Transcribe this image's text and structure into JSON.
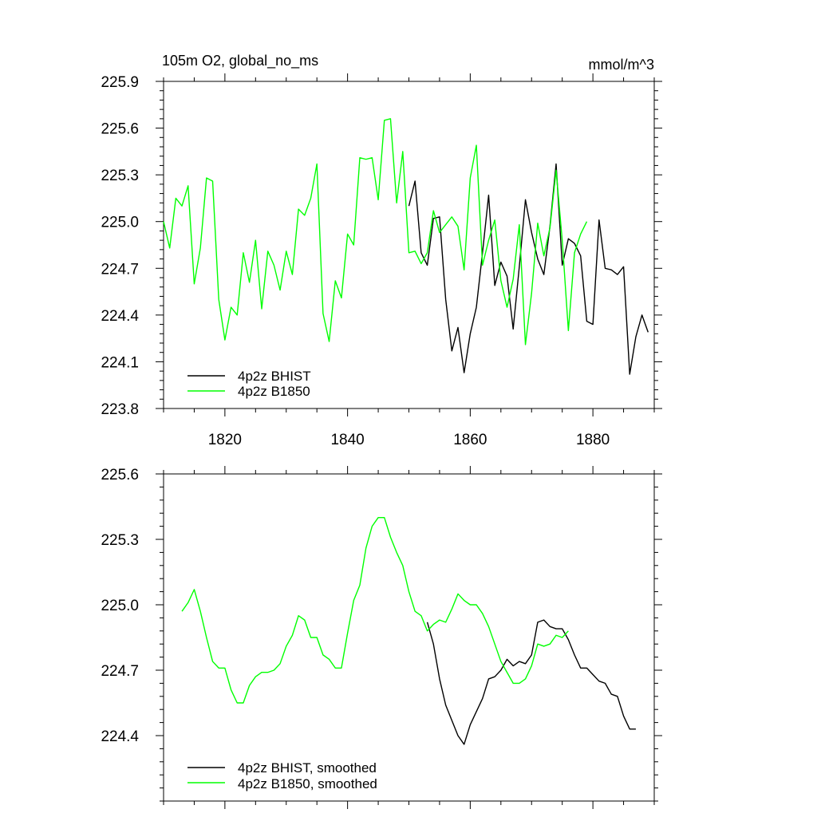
{
  "chart_data": [
    {
      "type": "line",
      "title_left": "105m O2, global_no_ms",
      "title_right": "mmol/m^3",
      "xlim": [
        1810,
        1890
      ],
      "ylim": [
        223.8,
        225.9
      ],
      "yticks": [
        "225.9",
        "225.6",
        "225.3",
        "225.0",
        "224.7",
        "224.4",
        "224.1",
        "223.8"
      ],
      "ytick_values": [
        225.9,
        225.6,
        225.3,
        225.0,
        224.7,
        224.4,
        224.1,
        223.8
      ],
      "xticks": [
        "1820",
        "1840",
        "1860",
        "1880"
      ],
      "xtick_values": [
        1820,
        1840,
        1860,
        1880
      ],
      "legend": [
        "4p2z BHIST",
        "4p2z B1850"
      ],
      "series": [
        {
          "name": "4p2z BHIST",
          "color": "#000000",
          "x": [
            1850,
            1851,
            1852,
            1853,
            1854,
            1855,
            1856,
            1857,
            1858,
            1859,
            1860,
            1861,
            1862,
            1863,
            1864,
            1865,
            1866,
            1867,
            1868,
            1869,
            1870,
            1871,
            1872,
            1873,
            1874,
            1875,
            1876,
            1877,
            1878,
            1879,
            1880,
            1881,
            1882,
            1883,
            1884,
            1885,
            1886,
            1887,
            1888,
            1889
          ],
          "values": [
            225.1,
            225.26,
            224.8,
            224.72,
            225.02,
            225.03,
            224.5,
            224.17,
            224.32,
            224.03,
            224.28,
            224.45,
            224.8,
            225.17,
            224.59,
            224.74,
            224.65,
            224.31,
            224.71,
            225.14,
            224.93,
            224.76,
            224.66,
            224.97,
            225.37,
            224.72,
            224.89,
            224.86,
            224.78,
            224.36,
            224.34,
            225.01,
            224.7,
            224.69,
            224.66,
            224.71,
            224.02,
            224.26,
            224.4,
            224.29
          ]
        },
        {
          "name": "4p2z B1850",
          "color": "#00ff00",
          "x": [
            1810,
            1811,
            1812,
            1813,
            1814,
            1815,
            1816,
            1817,
            1818,
            1819,
            1820,
            1821,
            1822,
            1823,
            1824,
            1825,
            1826,
            1827,
            1828,
            1829,
            1830,
            1831,
            1832,
            1833,
            1834,
            1835,
            1836,
            1837,
            1838,
            1839,
            1840,
            1841,
            1842,
            1843,
            1844,
            1845,
            1846,
            1847,
            1848,
            1849,
            1850,
            1851,
            1852,
            1853,
            1854,
            1855,
            1856,
            1857,
            1858,
            1859,
            1860,
            1861,
            1862,
            1863,
            1864,
            1865,
            1866,
            1867,
            1868,
            1869,
            1870,
            1871,
            1872,
            1873,
            1874,
            1875,
            1876,
            1877,
            1878,
            1879
          ],
          "values": [
            225.0,
            224.83,
            225.15,
            225.1,
            225.23,
            224.6,
            224.83,
            225.28,
            225.26,
            224.5,
            224.24,
            224.45,
            224.4,
            224.8,
            224.61,
            224.88,
            224.44,
            224.81,
            224.72,
            224.56,
            224.81,
            224.66,
            225.08,
            225.04,
            225.15,
            225.37,
            224.41,
            224.23,
            224.62,
            224.51,
            224.92,
            224.85,
            225.41,
            225.4,
            225.41,
            225.14,
            225.65,
            225.66,
            225.12,
            225.45,
            224.8,
            224.81,
            224.73,
            224.8,
            225.07,
            224.93,
            224.98,
            225.03,
            224.97,
            224.69,
            225.28,
            225.49,
            224.72,
            224.88,
            225.01,
            224.62,
            224.45,
            224.63,
            224.98,
            224.21,
            224.54,
            224.99,
            224.78,
            224.96,
            225.33,
            224.88,
            224.3,
            224.8,
            224.92,
            225.0
          ]
        }
      ]
    },
    {
      "type": "line",
      "xlim": [
        1810,
        1890
      ],
      "ylim": [
        224.1,
        225.6
      ],
      "yticks": [
        "225.6",
        "225.3",
        "225.0",
        "224.7",
        "224.4"
      ],
      "ytick_values": [
        225.6,
        225.3,
        225.0,
        224.7,
        224.4
      ],
      "xtick_values": [
        1820,
        1840,
        1860,
        1880
      ],
      "legend": [
        "4p2z BHIST, smoothed",
        "4p2z B1850, smoothed"
      ],
      "series": [
        {
          "name": "4p2z BHIST, smoothed",
          "color": "#000000",
          "x": [
            1853,
            1854,
            1855,
            1856,
            1857,
            1858,
            1859,
            1860,
            1861,
            1862,
            1863,
            1864,
            1865,
            1866,
            1867,
            1868,
            1869,
            1870,
            1871,
            1872,
            1873,
            1874,
            1875,
            1876,
            1877,
            1878,
            1879,
            1880,
            1881,
            1882,
            1883,
            1884,
            1885,
            1886,
            1887
          ],
          "values": [
            224.92,
            224.82,
            224.66,
            224.54,
            224.47,
            224.4,
            224.36,
            224.45,
            224.51,
            224.57,
            224.66,
            224.67,
            224.7,
            224.75,
            224.72,
            224.74,
            224.73,
            224.77,
            224.92,
            224.93,
            224.9,
            224.89,
            224.89,
            224.84,
            224.77,
            224.71,
            224.71,
            224.68,
            224.65,
            224.64,
            224.59,
            224.58,
            224.49,
            224.43,
            224.43
          ]
        },
        {
          "name": "4p2z B1850, smoothed",
          "color": "#00ff00",
          "x": [
            1813,
            1814,
            1815,
            1816,
            1817,
            1818,
            1819,
            1820,
            1821,
            1822,
            1823,
            1824,
            1825,
            1826,
            1827,
            1828,
            1829,
            1830,
            1831,
            1832,
            1833,
            1834,
            1835,
            1836,
            1837,
            1838,
            1839,
            1840,
            1841,
            1842,
            1843,
            1844,
            1845,
            1846,
            1847,
            1848,
            1849,
            1850,
            1851,
            1852,
            1853,
            1854,
            1855,
            1856,
            1857,
            1858,
            1859,
            1860,
            1861,
            1862,
            1863,
            1864,
            1865,
            1866,
            1867,
            1868,
            1869,
            1870,
            1871,
            1872,
            1873,
            1874,
            1875,
            1876
          ],
          "values": [
            224.97,
            225.01,
            225.07,
            224.97,
            224.85,
            224.74,
            224.71,
            224.71,
            224.61,
            224.55,
            224.55,
            224.63,
            224.67,
            224.69,
            224.69,
            224.7,
            224.73,
            224.81,
            224.86,
            224.95,
            224.93,
            224.85,
            224.85,
            224.77,
            224.75,
            224.71,
            224.71,
            224.87,
            225.02,
            225.09,
            225.26,
            225.36,
            225.4,
            225.4,
            225.31,
            225.24,
            225.18,
            225.06,
            224.97,
            224.95,
            224.88,
            224.91,
            224.93,
            224.92,
            224.98,
            225.05,
            225.02,
            225.0,
            225.0,
            224.96,
            224.9,
            224.82,
            224.74,
            224.69,
            224.64,
            224.64,
            224.66,
            224.72,
            224.82,
            224.81,
            224.82,
            224.86,
            224.85,
            224.88
          ]
        }
      ]
    }
  ]
}
